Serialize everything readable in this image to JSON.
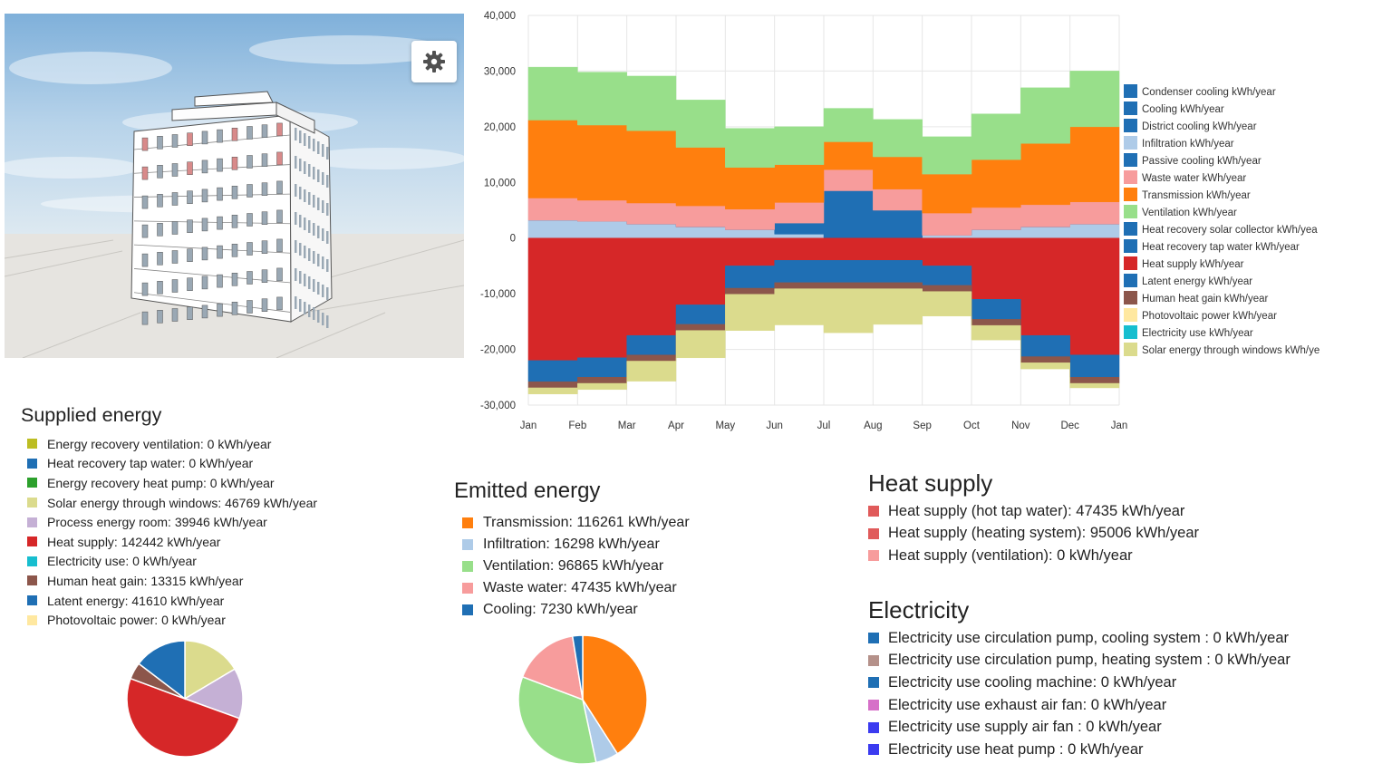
{
  "viewport": {
    "settings_icon": "gear-icon"
  },
  "chart_data": [
    {
      "type": "area",
      "step": true,
      "stacked": true,
      "x": [
        "Jan",
        "Feb",
        "Mar",
        "Apr",
        "May",
        "Jun",
        "Jul",
        "Aug",
        "Sep",
        "Oct",
        "Nov",
        "Dec",
        "Jan"
      ],
      "ylim": [
        -30000,
        40000
      ],
      "yticks": [
        "-30,000",
        "-20,000",
        "-10,000",
        "0",
        "10,000",
        "20,000",
        "30,000",
        "40,000"
      ],
      "grid": true,
      "legend_position": "right",
      "legend": [
        {
          "label": "Condenser cooling kWh/year",
          "color": "#1f6fb4"
        },
        {
          "label": "Cooling kWh/year",
          "color": "#1f6fb4"
        },
        {
          "label": "District cooling kWh/year",
          "color": "#1f6fb4"
        },
        {
          "label": "Infiltration kWh/year",
          "color": "#aecbe8"
        },
        {
          "label": "Passive cooling kWh/year",
          "color": "#1f6fb4"
        },
        {
          "label": "Waste water kWh/year",
          "color": "#f79c9c"
        },
        {
          "label": "Transmission kWh/year",
          "color": "#ff7f0e"
        },
        {
          "label": "Ventilation kWh/year",
          "color": "#98df8a"
        },
        {
          "label": "Heat recovery solar collector kWh/yea",
          "color": "#1f6fb4"
        },
        {
          "label": "Heat recovery tap water kWh/year",
          "color": "#1f6fb4"
        },
        {
          "label": "Heat supply kWh/year",
          "color": "#d62728"
        },
        {
          "label": "Latent energy kWh/year",
          "color": "#1f6fb4"
        },
        {
          "label": "Human heat gain kWh/year",
          "color": "#8c564b"
        },
        {
          "label": "Photovoltaic power kWh/year",
          "color": "#ffe8a0"
        },
        {
          "label": "Electricity use kWh/year",
          "color": "#17becf"
        },
        {
          "label": "Solar energy through windows kWh/ye",
          "color": "#dbdb8d"
        }
      ],
      "positive_series": [
        {
          "name": "Infiltration kWh/year",
          "color": "#aecbe8",
          "values": [
            3200,
            3000,
            2500,
            2000,
            1500,
            700,
            0,
            0,
            500,
            1500,
            2000,
            2500
          ]
        },
        {
          "name": "Cooling kWh/year",
          "color": "#1f6fb4",
          "values": [
            0,
            0,
            0,
            0,
            0,
            2000,
            8500,
            5000,
            0,
            0,
            0,
            0
          ]
        },
        {
          "name": "Waste water kWh/year",
          "color": "#f79c9c",
          "values": [
            4000,
            3800,
            3800,
            3800,
            3700,
            3700,
            3800,
            3800,
            4000,
            4000,
            4000,
            4000
          ]
        },
        {
          "name": "Transmission kWh/year",
          "color": "#ff7f0e",
          "values": [
            14000,
            13500,
            13000,
            10500,
            7500,
            6800,
            5000,
            5800,
            7000,
            8600,
            11000,
            13500
          ]
        },
        {
          "name": "Ventilation kWh/year",
          "color": "#98df8a",
          "values": [
            9500,
            9500,
            9800,
            8500,
            7000,
            6800,
            6000,
            6700,
            6700,
            8200,
            10000,
            10000
          ]
        }
      ],
      "negative_series": [
        {
          "name": "Heat supply kWh/year",
          "color": "#d62728",
          "values": [
            -22000,
            -21500,
            -17500,
            -12000,
            -5000,
            -4000,
            -4000,
            -4000,
            -5000,
            -11000,
            -17500,
            -21000
          ]
        },
        {
          "name": "Latent energy kWh/year",
          "color": "#1f6fb4",
          "values": [
            -3800,
            -3500,
            -3500,
            -3500,
            -4000,
            -4000,
            -4000,
            -4000,
            -3500,
            -3600,
            -3800,
            -4000
          ]
        },
        {
          "name": "Human heat gain kWh/year",
          "color": "#8c564b",
          "values": [
            -1100,
            -1100,
            -1100,
            -1100,
            -1100,
            -1100,
            -1100,
            -1100,
            -1100,
            -1100,
            -1100,
            -1100
          ]
        },
        {
          "name": "Solar energy through windows kWh/ye",
          "color": "#dbdb8d",
          "values": [
            -1100,
            -1100,
            -3600,
            -4900,
            -6500,
            -6500,
            -7900,
            -6400,
            -4400,
            -2600,
            -1100,
            -800
          ]
        }
      ]
    },
    {
      "type": "pie",
      "slices": [
        {
          "label": "Solar energy through windows",
          "value": 46769,
          "color": "#dbdb8d"
        },
        {
          "label": "Process energy room",
          "value": 39946,
          "color": "#c5b0d5"
        },
        {
          "label": "Heat supply",
          "value": 142442,
          "color": "#d62728"
        },
        {
          "label": "Human heat gain",
          "value": 13315,
          "color": "#8c564b"
        },
        {
          "label": "Latent energy",
          "value": 41610,
          "color": "#1f6fb4"
        }
      ]
    },
    {
      "type": "pie",
      "slices": [
        {
          "label": "Transmission",
          "value": 116261,
          "color": "#ff7f0e"
        },
        {
          "label": "Infiltration",
          "value": 16298,
          "color": "#aecbe8"
        },
        {
          "label": "Ventilation",
          "value": 96865,
          "color": "#98df8a"
        },
        {
          "label": "Waste water",
          "value": 47435,
          "color": "#f79c9c"
        },
        {
          "label": "Cooling",
          "value": 7230,
          "color": "#1f6fb4"
        }
      ]
    }
  ],
  "supplied": {
    "title": "Supplied energy",
    "items": [
      {
        "label": "Energy recovery ventilation: 0 kWh/year",
        "color": "#bcbd22"
      },
      {
        "label": "Heat recovery tap water: 0 kWh/year",
        "color": "#1f6fb4"
      },
      {
        "label": "Energy recovery heat pump: 0 kWh/year",
        "color": "#2ca02c"
      },
      {
        "label": "Solar energy through windows: 46769 kWh/year",
        "color": "#dbdb8d"
      },
      {
        "label": "Process energy room: 39946 kWh/year",
        "color": "#c5b0d5"
      },
      {
        "label": "Heat supply: 142442 kWh/year",
        "color": "#d62728"
      },
      {
        "label": "Electricity use: 0 kWh/year",
        "color": "#17becf"
      },
      {
        "label": "Human heat gain: 13315 kWh/year",
        "color": "#8c564b"
      },
      {
        "label": "Latent energy: 41610 kWh/year",
        "color": "#1f6fb4"
      },
      {
        "label": "Photovoltaic power: 0 kWh/year",
        "color": "#ffe8a0"
      }
    ]
  },
  "emitted": {
    "title": "Emitted energy",
    "items": [
      {
        "label": "Transmission: 116261 kWh/year",
        "color": "#ff7f0e"
      },
      {
        "label": "Infiltration: 16298 kWh/year",
        "color": "#aecbe8"
      },
      {
        "label": "Ventilation: 96865 kWh/year",
        "color": "#98df8a"
      },
      {
        "label": "Waste water: 47435 kWh/year",
        "color": "#f79c9c"
      },
      {
        "label": "Cooling: 7230 kWh/year",
        "color": "#1f6fb4"
      }
    ]
  },
  "heat_supply": {
    "title": "Heat supply",
    "items": [
      {
        "label": "Heat supply (hot tap water): 47435 kWh/year",
        "color": "#e05a5a"
      },
      {
        "label": "Heat supply (heating system): 95006 kWh/year",
        "color": "#e05a5a"
      },
      {
        "label": "Heat supply (ventilation): 0 kWh/year",
        "color": "#f79c9c"
      }
    ]
  },
  "electricity": {
    "title": "Electricity",
    "items": [
      {
        "label": "Electricity use circulation pump, cooling system : 0 kWh/year",
        "color": "#1f6fb4"
      },
      {
        "label": "Electricity use circulation pump, heating system : 0 kWh/year",
        "color": "#b5918a"
      },
      {
        "label": "Electricity use cooling machine: 0 kWh/year",
        "color": "#1f6fb4"
      },
      {
        "label": "Electricity use exhaust air fan: 0 kWh/year",
        "color": "#d670c8"
      },
      {
        "label": "Electricity use supply air fan : 0 kWh/year",
        "color": "#3b3bf0"
      },
      {
        "label": "Electricity use heat pump : 0 kWh/year",
        "color": "#3b3bf0"
      }
    ]
  }
}
